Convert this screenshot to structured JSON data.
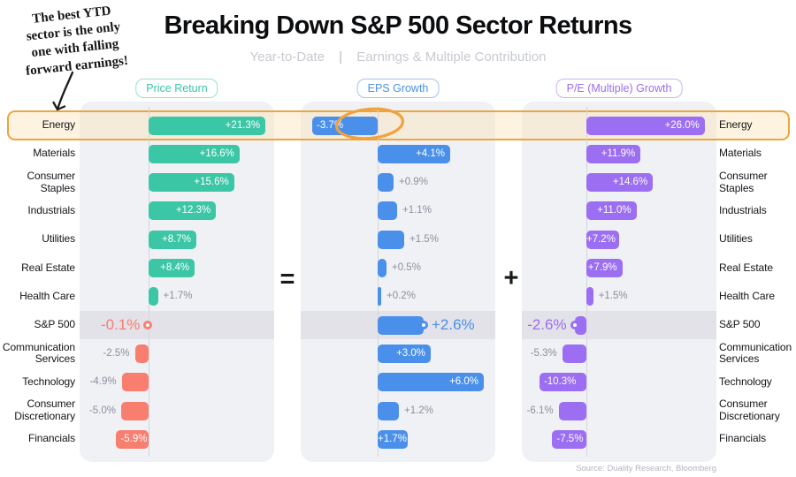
{
  "annotation": {
    "text": "The best YTD sector is the only one with falling forward earnings!",
    "lines": [
      "The best YTD",
      "sector is the only",
      "one with falling",
      "forward earnings!"
    ]
  },
  "header": {
    "title": "Breaking Down S&P 500 Sector Returns",
    "subtitle_left": "Year-to-Date",
    "subtitle_divider": "|",
    "subtitle_right": "Earnings & Multiple Contribution"
  },
  "equation": {
    "equals": "=",
    "plus": "+"
  },
  "source": "Source: Duality Research, Bloomberg",
  "colors": {
    "teal": "#3bc6a5",
    "salmon": "#f87e70",
    "blue": "#4a90ea",
    "purple": "#9c6ef2",
    "highlight_border": "#eaa640",
    "outside_label_gray": "#8b909b"
  },
  "chart_data": {
    "type": "bar",
    "orientation": "horizontal",
    "title": "Breaking Down S&P 500 Sector Returns",
    "subtitle": "Year-to-Date | Earnings & Multiple Contribution",
    "categories": [
      "Energy",
      "Materials",
      "Consumer Staples",
      "Industrials",
      "Utilities",
      "Real Estate",
      "Health Care",
      "S&P 500",
      "Communication Services",
      "Technology",
      "Consumer Discretionary",
      "Financials"
    ],
    "series": [
      {
        "name": "Price Return",
        "values": [
          21.3,
          16.6,
          15.6,
          12.3,
          8.7,
          8.4,
          1.7,
          -0.1,
          -2.5,
          -4.9,
          -5.0,
          -5.9
        ],
        "labels": [
          "+21.3%",
          "+16.6%",
          "+15.6%",
          "+12.3%",
          "+8.7%",
          "+8.4%",
          "+1.7%",
          "-0.1%",
          "-2.5%",
          "-4.9%",
          "-5.0%",
          "-5.9%"
        ],
        "pos_color": "#3bc6a5",
        "neg_color": "#f87e70"
      },
      {
        "name": "EPS Growth",
        "values": [
          -3.7,
          4.1,
          0.9,
          1.1,
          1.5,
          0.5,
          0.2,
          2.6,
          3.0,
          6.0,
          1.2,
          1.7
        ],
        "labels": [
          "-3.7%",
          "+4.1%",
          "+0.9%",
          "+1.1%",
          "+1.5%",
          "+0.5%",
          "+0.2%",
          "+2.6%",
          "+3.0%",
          "+6.0%",
          "+1.2%",
          "+1.7%"
        ],
        "pos_color": "#4a90ea",
        "neg_color": "#4a90ea"
      },
      {
        "name": "P/E (Multiple) Growth",
        "values": [
          26.0,
          11.9,
          14.6,
          11.0,
          7.2,
          7.9,
          1.5,
          -2.6,
          -5.3,
          -10.3,
          -6.1,
          -7.5
        ],
        "labels": [
          "+26.0%",
          "+11.9%",
          "+14.6%",
          "+11.0%",
          "+7.2%",
          "+7.9%",
          "+1.5%",
          "-2.6%",
          "-5.3%",
          "-10.3%",
          "-6.1%",
          "-7.5%"
        ],
        "pos_color": "#9c6ef2",
        "neg_color": "#9c6ef2"
      }
    ],
    "highlighted_category": "Energy",
    "benchmark_row": "S&P 500",
    "legend_position": "top",
    "grid": false
  }
}
